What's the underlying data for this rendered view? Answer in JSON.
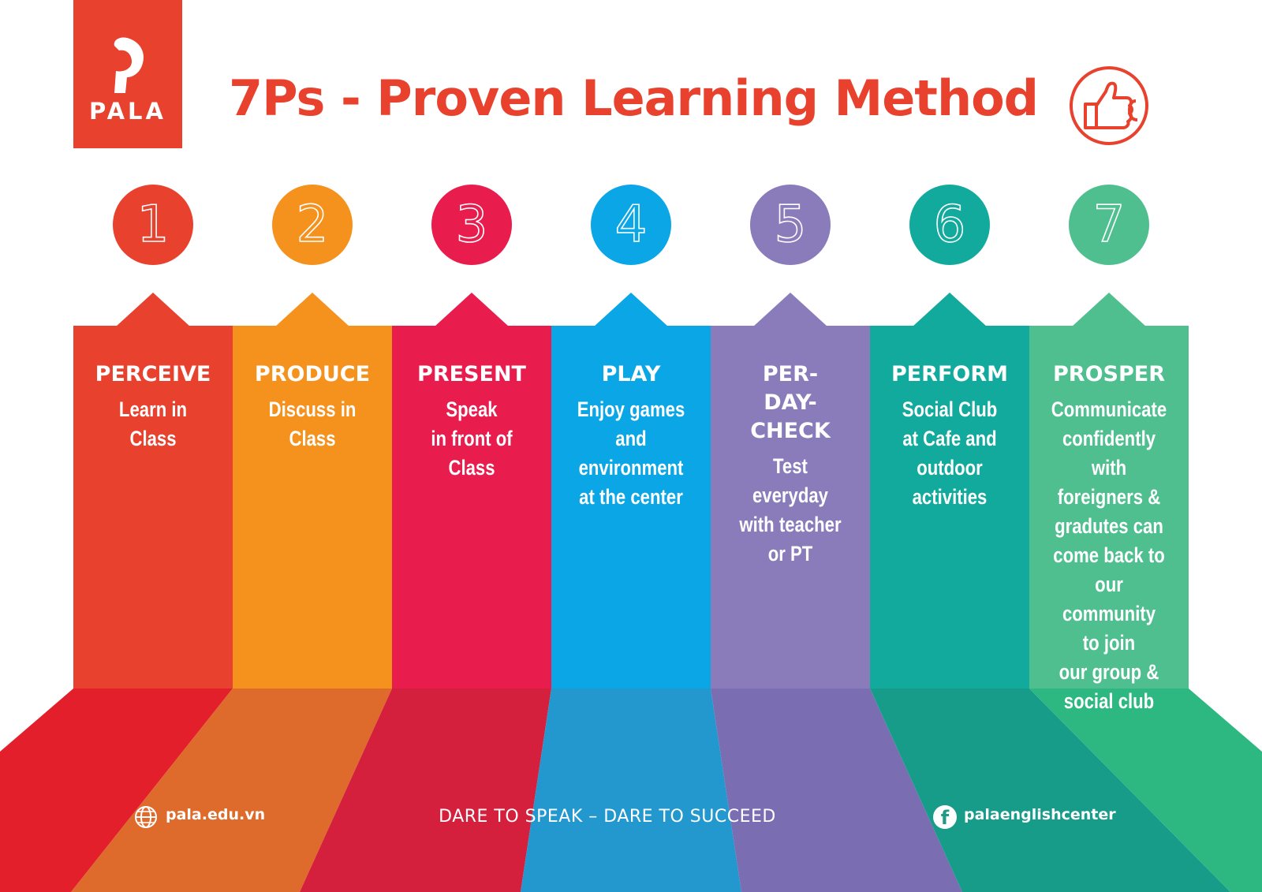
{
  "brand": {
    "logo_text": "PALA",
    "primary_color": "#e8412e"
  },
  "header": {
    "title": "7Ps - Proven Learning Method",
    "badge_icon": "thumbs-up-icon"
  },
  "steps": [
    {
      "number": "1",
      "name": "PERCEIVE",
      "lines": [
        "Learn in",
        "Class"
      ],
      "color": "#e8412e",
      "floor_color": "#e31f2b"
    },
    {
      "number": "2",
      "name": "PRODUCE",
      "lines": [
        "Discuss in",
        "Class"
      ],
      "color": "#f5921e",
      "floor_color": "#de6b2b"
    },
    {
      "number": "3",
      "name": "PRESENT",
      "lines": [
        "Speak",
        "in front of",
        "Class"
      ],
      "color": "#e81c4d",
      "floor_color": "#d41f3d"
    },
    {
      "number": "4",
      "name": "PLAY",
      "lines": [
        "Enjoy games",
        "and",
        "environment",
        "at the center"
      ],
      "color": "#0aa6e6",
      "floor_color": "#2398cf"
    },
    {
      "number": "5",
      "name_lines": [
        "PER-",
        "DAY-",
        "CHECK"
      ],
      "lines": [
        "Test",
        "everyday",
        "with teacher",
        "or PT"
      ],
      "color": "#8a7bbb",
      "floor_color": "#7a6db1"
    },
    {
      "number": "6",
      "name": "PERFORM",
      "lines": [
        "Social Club",
        "at Cafe and",
        "outdoor",
        "activities"
      ],
      "color": "#11aa9c",
      "floor_color": "#189c8a"
    },
    {
      "number": "7",
      "name": "PROSPER",
      "lines": [
        "Communicate",
        "confidently with",
        "foreigners &",
        "gradutes can",
        "come back to",
        "our community",
        "to join",
        "our group &",
        "social club"
      ],
      "color": "#4fbf90",
      "floor_color": "#2db882"
    }
  ],
  "footer": {
    "website": "pala.edu.vn",
    "website_icon": "globe-icon",
    "slogan": "DARE TO SPEAK – DARE TO SUCCEED",
    "facebook": "palaenglishcenter",
    "facebook_icon": "facebook-icon"
  }
}
